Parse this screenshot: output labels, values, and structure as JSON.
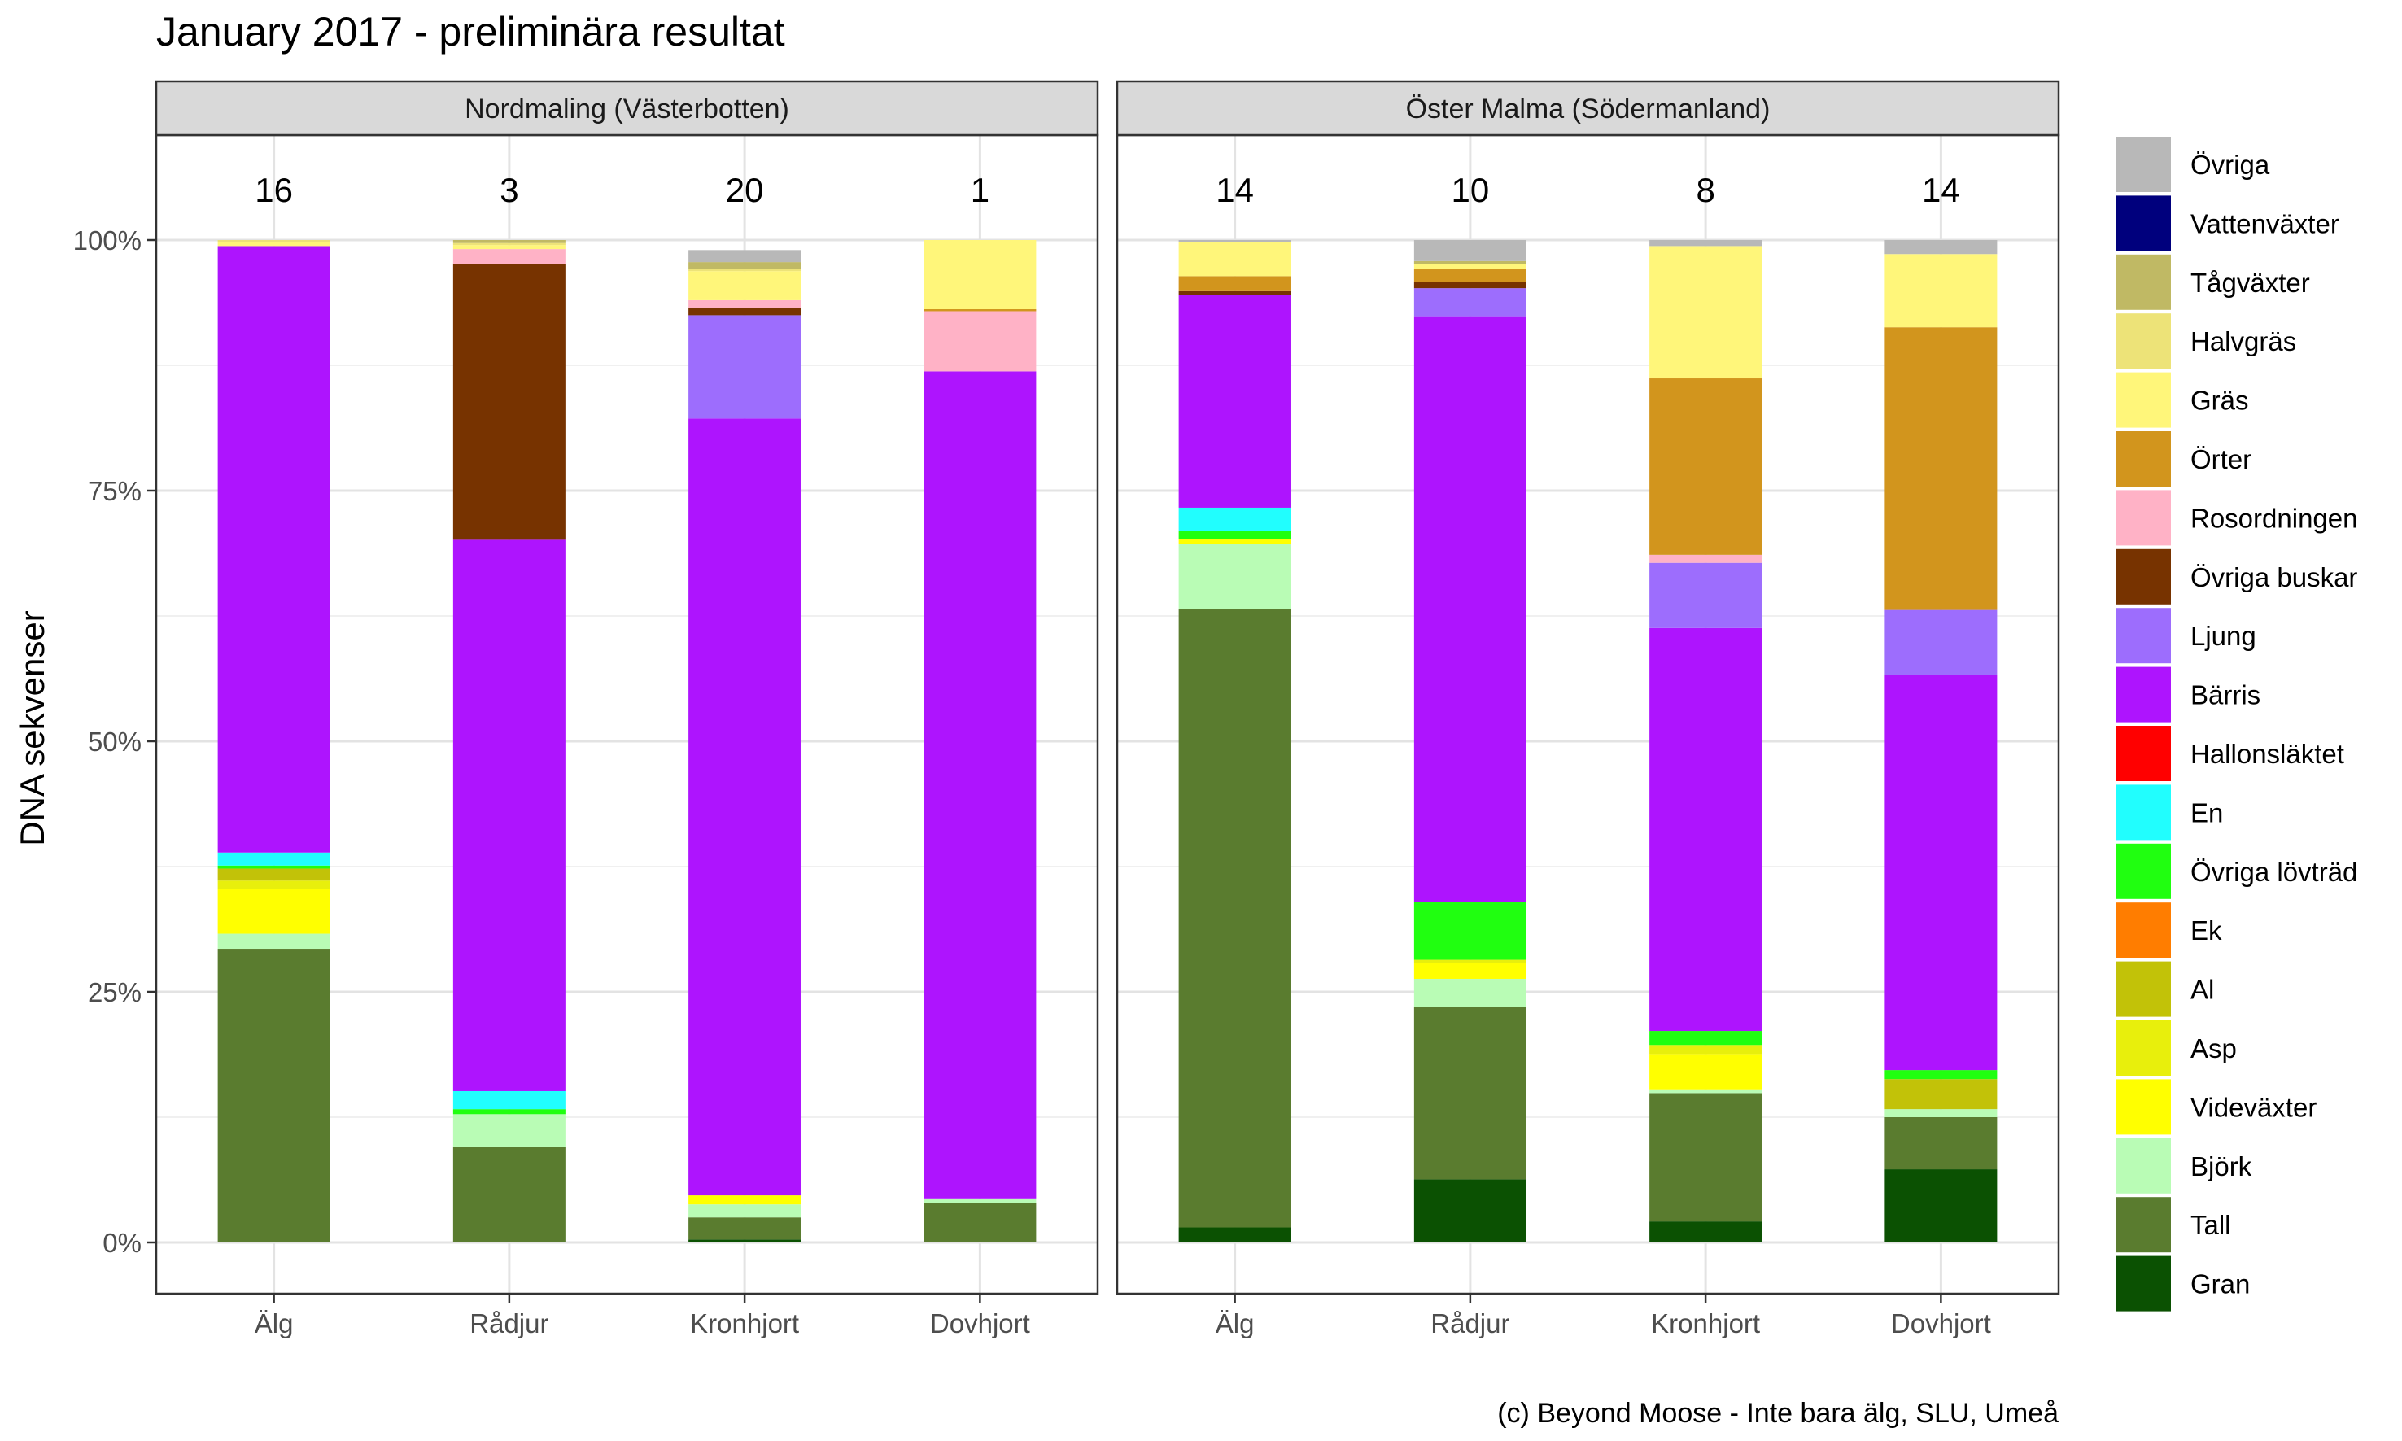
{
  "chart_data": {
    "type": "bar",
    "stacked": true,
    "title": "January 2017 - preliminära resultat",
    "ylabel": "DNA sekvenser",
    "caption": "(c) Beyond Moose - Inte bara älg, SLU, Umeå",
    "y_ticks": [
      "0%",
      "25%",
      "50%",
      "75%",
      "100%"
    ],
    "ylim": [
      0,
      110
    ],
    "categories": [
      "Älg",
      "Rådjur",
      "Kronhjort",
      "Dovhjort"
    ],
    "legend_position": "right",
    "series": [
      {
        "name": "Gran",
        "color": "#0b5102"
      },
      {
        "name": "Tall",
        "color": "#5a7c2f"
      },
      {
        "name": "Björk",
        "color": "#b9fcb5"
      },
      {
        "name": "Videväxter",
        "color": "#ffff00"
      },
      {
        "name": "Asp",
        "color": "#e8ef0c"
      },
      {
        "name": "Al",
        "color": "#c2c208"
      },
      {
        "name": "Ek",
        "color": "#ff7d00"
      },
      {
        "name": "Övriga lövträd",
        "color": "#20ff10"
      },
      {
        "name": "En",
        "color": "#21fefe"
      },
      {
        "name": "Hallonsläktet",
        "color": "#ff0000"
      },
      {
        "name": "Bärris",
        "color": "#ae14fe"
      },
      {
        "name": "Ljung",
        "color": "#9d6dfd"
      },
      {
        "name": "Övriga buskar",
        "color": "#773300"
      },
      {
        "name": "Rosordningen",
        "color": "#ffb2c6"
      },
      {
        "name": "Örter",
        "color": "#d2951d"
      },
      {
        "name": "Gräs",
        "color": "#fff67a"
      },
      {
        "name": "Halvgräs",
        "color": "#ede378"
      },
      {
        "name": "Tågväxter",
        "color": "#c0b964"
      },
      {
        "name": "Vattenväxter",
        "color": "#00007d"
      },
      {
        "name": "Övriga",
        "color": "#b8b8b8"
      }
    ],
    "legend_order": [
      "Övriga",
      "Vattenväxter",
      "Tågväxter",
      "Halvgräs",
      "Gräs",
      "Örter",
      "Rosordningen",
      "Övriga buskar",
      "Ljung",
      "Bärris",
      "Hallonsläktet",
      "En",
      "Övriga lövträd",
      "Ek",
      "Al",
      "Asp",
      "Videväxter",
      "Björk",
      "Tall",
      "Gran"
    ],
    "panels": [
      {
        "strip": "Nordmaling (Västerbotten)",
        "counts": [
          "16",
          "3",
          "20",
          "1"
        ],
        "values": {
          "Gran": [
            0.0,
            0.0,
            0.3,
            0.0
          ],
          "Tall": [
            29.3,
            9.5,
            2.2,
            3.9
          ],
          "Björk": [
            1.5,
            3.3,
            1.3,
            0.5
          ],
          "Videväxter": [
            4.5,
            0.0,
            0.9,
            0.0
          ],
          "Asp": [
            0.8,
            0.0,
            0.0,
            0.0
          ],
          "Al": [
            1.2,
            0.0,
            0.0,
            0.0
          ],
          "Ek": [
            0.0,
            0.0,
            0.0,
            0.0
          ],
          "Övriga lövträd": [
            0.3,
            0.5,
            0.0,
            0.0
          ],
          "En": [
            1.3,
            1.8,
            0.0,
            0.0
          ],
          "Hallonsläktet": [
            0.0,
            0.0,
            0.0,
            0.0
          ],
          "Bärris": [
            60.5,
            55.0,
            77.5,
            82.5
          ],
          "Ljung": [
            0.0,
            0.0,
            10.3,
            0.0
          ],
          "Övriga buskar": [
            0.0,
            27.5,
            0.7,
            0.0
          ],
          "Rosordningen": [
            0.0,
            1.5,
            0.8,
            6.0
          ],
          "Örter": [
            0.0,
            0.0,
            0.0,
            0.2
          ],
          "Gräs": [
            0.4,
            0.4,
            2.9,
            6.9
          ],
          "Halvgräs": [
            0.2,
            0.2,
            0.2,
            0.0
          ],
          "Tågväxter": [
            0.0,
            0.3,
            0.7,
            0.0
          ],
          "Vattenväxter": [
            0.0,
            0.0,
            0.0,
            0.0
          ],
          "Övriga": [
            0.0,
            0.0,
            1.2,
            0.0
          ]
        }
      },
      {
        "strip": "Öster Malma (Södermanland)",
        "counts": [
          "14",
          "10",
          "8",
          "14"
        ],
        "values": {
          "Gran": [
            1.5,
            6.3,
            2.1,
            7.3
          ],
          "Tall": [
            61.7,
            17.2,
            12.8,
            5.2
          ],
          "Björk": [
            6.5,
            2.8,
            0.3,
            0.8
          ],
          "Videväxter": [
            0.5,
            1.6,
            3.6,
            0.0
          ],
          "Asp": [
            0.0,
            0.3,
            0.9,
            0.0
          ],
          "Al": [
            0.0,
            0.0,
            0.0,
            3.0
          ],
          "Ek": [
            0.0,
            0.0,
            0.0,
            0.0
          ],
          "Övriga lövträd": [
            0.8,
            5.8,
            1.4,
            0.9
          ],
          "En": [
            2.3,
            0.0,
            0.0,
            0.0
          ],
          "Hallonsläktet": [
            0.0,
            0.0,
            0.0,
            0.0
          ],
          "Bärris": [
            21.2,
            58.4,
            40.2,
            39.4
          ],
          "Ljung": [
            0.0,
            2.8,
            6.5,
            6.5
          ],
          "Övriga buskar": [
            0.4,
            0.6,
            0.0,
            0.0
          ],
          "Rosordningen": [
            0.0,
            0.0,
            0.8,
            0.0
          ],
          "Örter": [
            1.5,
            1.3,
            17.6,
            28.2
          ],
          "Gräs": [
            3.4,
            0.5,
            13.2,
            7.3
          ],
          "Halvgräs": [
            0.0,
            0.0,
            0.0,
            0.0
          ],
          "Tågväxter": [
            0.0,
            0.3,
            0.0,
            0.0
          ],
          "Vattenväxter": [
            0.0,
            0.0,
            0.0,
            0.0
          ],
          "Övriga": [
            0.2,
            2.1,
            0.6,
            1.4
          ]
        }
      }
    ]
  }
}
